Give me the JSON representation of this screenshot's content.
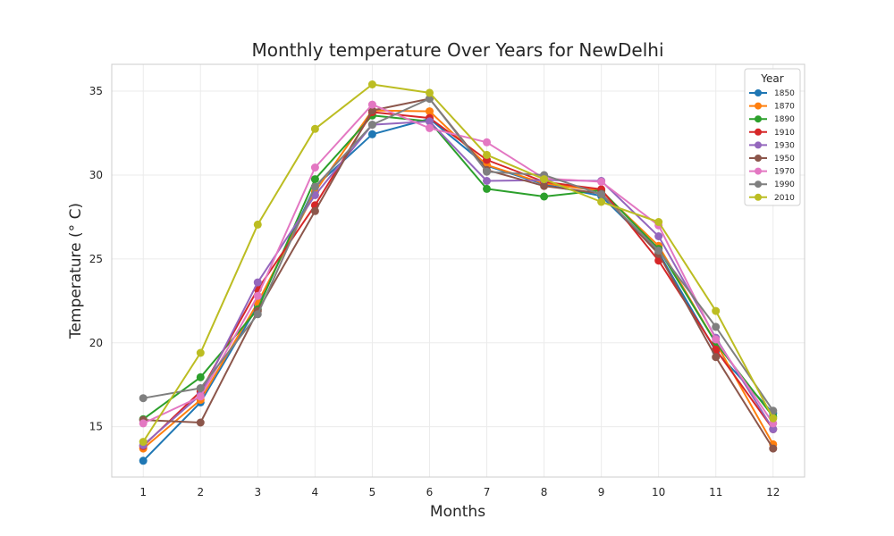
{
  "chart_data": {
    "type": "line",
    "title": "Monthly temperature Over Years for NewDelhi",
    "xlabel": "Months",
    "ylabel": "Temperature (° C)",
    "x": [
      1,
      2,
      3,
      4,
      5,
      6,
      7,
      8,
      9,
      10,
      11,
      12
    ],
    "xlim": [
      0.45,
      12.55
    ],
    "ylim": [
      12.0,
      36.6
    ],
    "yticks": [
      15,
      20,
      25,
      30,
      35
    ],
    "grid": true,
    "legend": {
      "title": "Year",
      "placement": "top-right"
    },
    "series": [
      {
        "name": "1850",
        "color": "#1f77b4",
        "values": [
          12.97,
          16.45,
          22.2,
          29.3,
          32.43,
          33.35,
          30.55,
          29.45,
          28.75,
          25.38,
          19.5,
          15.8
        ]
      },
      {
        "name": "1870",
        "color": "#ff7f0e",
        "values": [
          13.7,
          16.6,
          22.4,
          29.0,
          33.85,
          33.8,
          30.6,
          29.5,
          29.05,
          25.78,
          20.0,
          13.95
        ]
      },
      {
        "name": "1890",
        "color": "#2ca02c",
        "values": [
          15.45,
          17.95,
          22.0,
          29.75,
          33.55,
          33.2,
          29.18,
          28.72,
          29.1,
          25.6,
          20.0,
          15.6
        ]
      },
      {
        "name": "1910",
        "color": "#d62728",
        "values": [
          13.85,
          17.1,
          23.2,
          28.2,
          33.75,
          33.4,
          30.9,
          29.6,
          29.15,
          24.9,
          19.6,
          14.85
        ]
      },
      {
        "name": "1930",
        "color": "#9467bd",
        "values": [
          13.9,
          16.9,
          23.6,
          28.8,
          33.0,
          33.2,
          29.65,
          29.7,
          29.65,
          26.35,
          20.3,
          14.85
        ]
      },
      {
        "name": "1950",
        "color": "#8c564b",
        "values": [
          15.4,
          15.25,
          21.9,
          27.85,
          33.85,
          34.55,
          30.3,
          29.35,
          28.9,
          25.3,
          19.15,
          13.7
        ]
      },
      {
        "name": "1970",
        "color": "#e377c2",
        "values": [
          15.2,
          16.8,
          22.8,
          30.45,
          34.2,
          32.8,
          31.95,
          29.8,
          29.6,
          27.0,
          20.2,
          15.2
        ]
      },
      {
        "name": "1990",
        "color": "#7f7f7f",
        "values": [
          16.7,
          17.3,
          21.7,
          29.3,
          33.0,
          34.55,
          30.2,
          30.0,
          28.85,
          25.5,
          20.95,
          15.95
        ]
      },
      {
        "name": "2010",
        "color": "#bcbd22",
        "values": [
          14.1,
          19.4,
          27.05,
          32.75,
          35.4,
          34.9,
          31.2,
          29.75,
          28.4,
          27.2,
          21.9,
          15.5
        ]
      }
    ]
  }
}
